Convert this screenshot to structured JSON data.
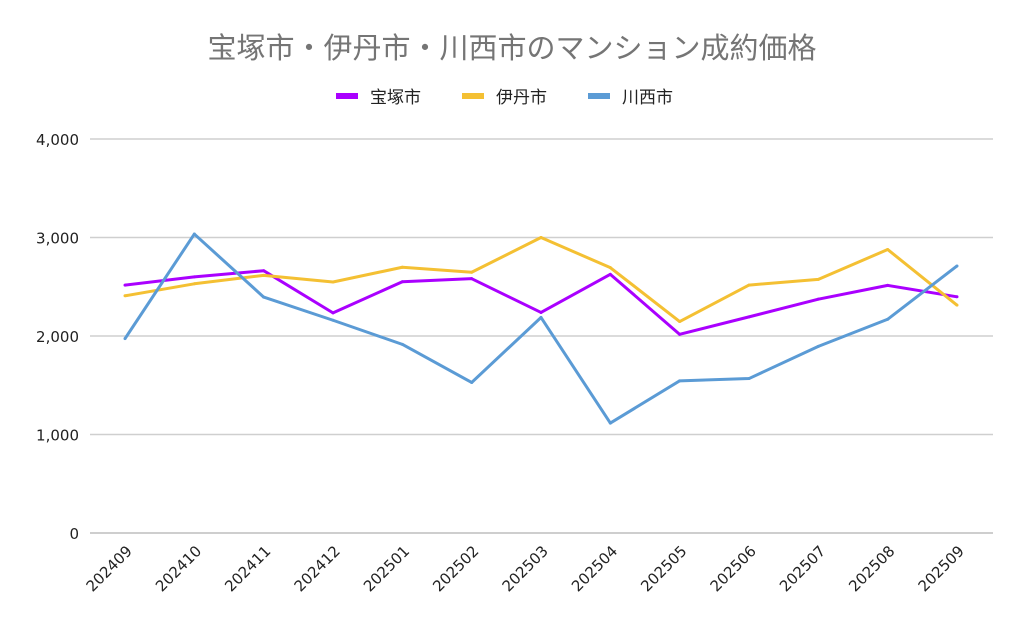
{
  "chart_data": {
    "type": "line",
    "title": "宝塚市・伊丹市・川西市のマンション成約価格",
    "xlabel": "",
    "ylabel": "",
    "ylim": [
      0,
      4000
    ],
    "yticks": [
      "0",
      "1,000",
      "2,000",
      "3,000",
      "4,000"
    ],
    "ytick_values": [
      0,
      1000,
      2000,
      3000,
      4000
    ],
    "grid": true,
    "legend_position": "top",
    "categories": [
      "202409",
      "202410",
      "202411",
      "202412",
      "202501",
      "202502",
      "202503",
      "202504",
      "202505",
      "202506",
      "202507",
      "202508",
      "202509"
    ],
    "series": [
      {
        "name": "宝塚市",
        "color": "#aa00ff",
        "values": [
          2517,
          2600,
          2663,
          2235,
          2551,
          2582,
          2239,
          2626,
          2017,
          2194,
          2374,
          2514,
          2398
        ]
      },
      {
        "name": "伊丹市",
        "color": "#f4c033",
        "values": [
          2408,
          2530,
          2616,
          2548,
          2698,
          2647,
          3000,
          2694,
          2147,
          2517,
          2575,
          2878,
          2313
        ]
      },
      {
        "name": "川西市",
        "color": "#5b9bd5",
        "values": [
          1973,
          3035,
          2395,
          2160,
          1915,
          1528,
          2188,
          1116,
          1545,
          1568,
          1895,
          2170,
          2711
        ]
      }
    ]
  }
}
